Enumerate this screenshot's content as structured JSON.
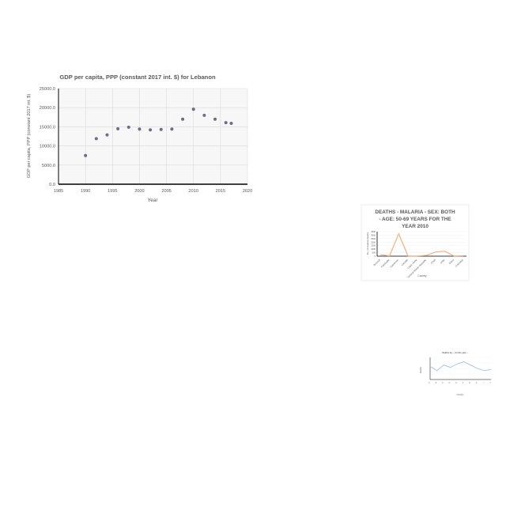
{
  "chart_data": [
    {
      "type": "scatter",
      "title": "GDP per capita, PPP (constant  2017 int. $) for  Lebanon",
      "xlabel": "Year",
      "ylabel": "GDP per capita, PPP (constant 2017 int. $)",
      "xlim": [
        1985,
        2020
      ],
      "ylim": [
        0,
        25000
      ],
      "x_ticks": [
        "1985",
        "1990",
        "1995",
        "2000",
        "2005",
        "2010",
        "2015",
        "2020"
      ],
      "y_ticks": [
        "0.0",
        "5000.0",
        "10000.0",
        "15000.0",
        "20000.0",
        "25000.0"
      ],
      "points": [
        {
          "x": 1990,
          "y": 7500
        },
        {
          "x": 1992,
          "y": 11900
        },
        {
          "x": 1994,
          "y": 12900
        },
        {
          "x": 1996,
          "y": 14500
        },
        {
          "x": 1998,
          "y": 14900
        },
        {
          "x": 2000,
          "y": 14400
        },
        {
          "x": 2002,
          "y": 14200
        },
        {
          "x": 2004,
          "y": 14300
        },
        {
          "x": 2006,
          "y": 14400
        },
        {
          "x": 2008,
          "y": 17000
        },
        {
          "x": 2010,
          "y": 19600
        },
        {
          "x": 2012,
          "y": 18000
        },
        {
          "x": 2014,
          "y": 17000
        },
        {
          "x": 2016,
          "y": 16100
        },
        {
          "x": 2017,
          "y": 15900
        }
      ],
      "colors": {
        "point": "#6b6d8a",
        "grid": "#d9d9d9",
        "axis": "#000000"
      }
    },
    {
      "type": "line",
      "title_lines": [
        "DEATHS - MALARIA - SEX: BOTH",
        "- AGE: 50-69 YEARS FOR THE",
        "YEAR 2010"
      ],
      "xlabel": "Country",
      "ylabel": "No. of malaria deaths",
      "ylim": [
        0,
        3500
      ],
      "y_ticks": [
        "0",
        "500",
        "1000",
        "1500",
        "2000",
        "2500",
        "3000",
        "3500"
      ],
      "categories": [
        "Burundi",
        "Cambodia",
        "Cameroon",
        "Canada",
        "Cape Verde",
        "Central African Republic",
        "Chad",
        "Chile",
        "China",
        "Colombia"
      ],
      "values": [
        220,
        40,
        3200,
        30,
        20,
        120,
        600,
        700,
        30,
        50
      ],
      "colors": {
        "line": "#f4b183"
      }
    },
    {
      "type": "line",
      "title": "Deaths by ... for the year ...",
      "xlabel": "Country",
      "ylabel": "Deaths",
      "categories": [
        "A",
        "B",
        "C",
        "D",
        "E",
        "F",
        "G",
        "H",
        "I",
        "J"
      ],
      "values": [
        60,
        40,
        65,
        55,
        70,
        80,
        65,
        50,
        40,
        45
      ],
      "ylim": [
        0,
        100
      ],
      "colors": {
        "line": "#9dc3e6"
      }
    }
  ]
}
